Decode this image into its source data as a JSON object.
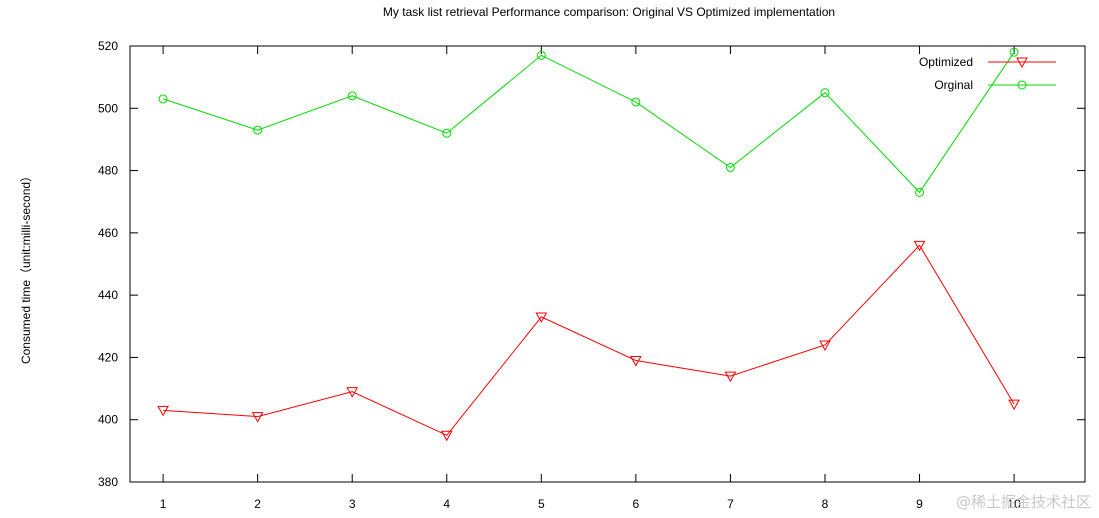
{
  "chart_data": {
    "type": "line",
    "title": "My task list retrieval Performance comparison: Original VS Optimized implementation",
    "xlabel": "",
    "ylabel": "Consumed time（unit:milli-second）",
    "x": [
      1,
      2,
      3,
      4,
      5,
      6,
      7,
      8,
      9,
      10
    ],
    "xlim": [
      0.65,
      10.75
    ],
    "ylim": [
      380,
      520
    ],
    "yticks": [
      380,
      400,
      420,
      440,
      460,
      480,
      500,
      520
    ],
    "xticks": [
      1,
      2,
      3,
      4,
      5,
      6,
      7,
      8,
      9,
      10
    ],
    "grid": false,
    "legend_position": "top-right",
    "series": [
      {
        "name": "Optimized",
        "color": "#ff0000",
        "marker": "triangle-down",
        "values": [
          403,
          401,
          409,
          395,
          433,
          419,
          414,
          424,
          456,
          405
        ]
      },
      {
        "name": "Orginal",
        "color": "#00dd00",
        "marker": "circle",
        "values": [
          503,
          493,
          504,
          492,
          517,
          502,
          481,
          505,
          473,
          518
        ]
      }
    ]
  },
  "watermark": "@稀土掘金技术社区"
}
